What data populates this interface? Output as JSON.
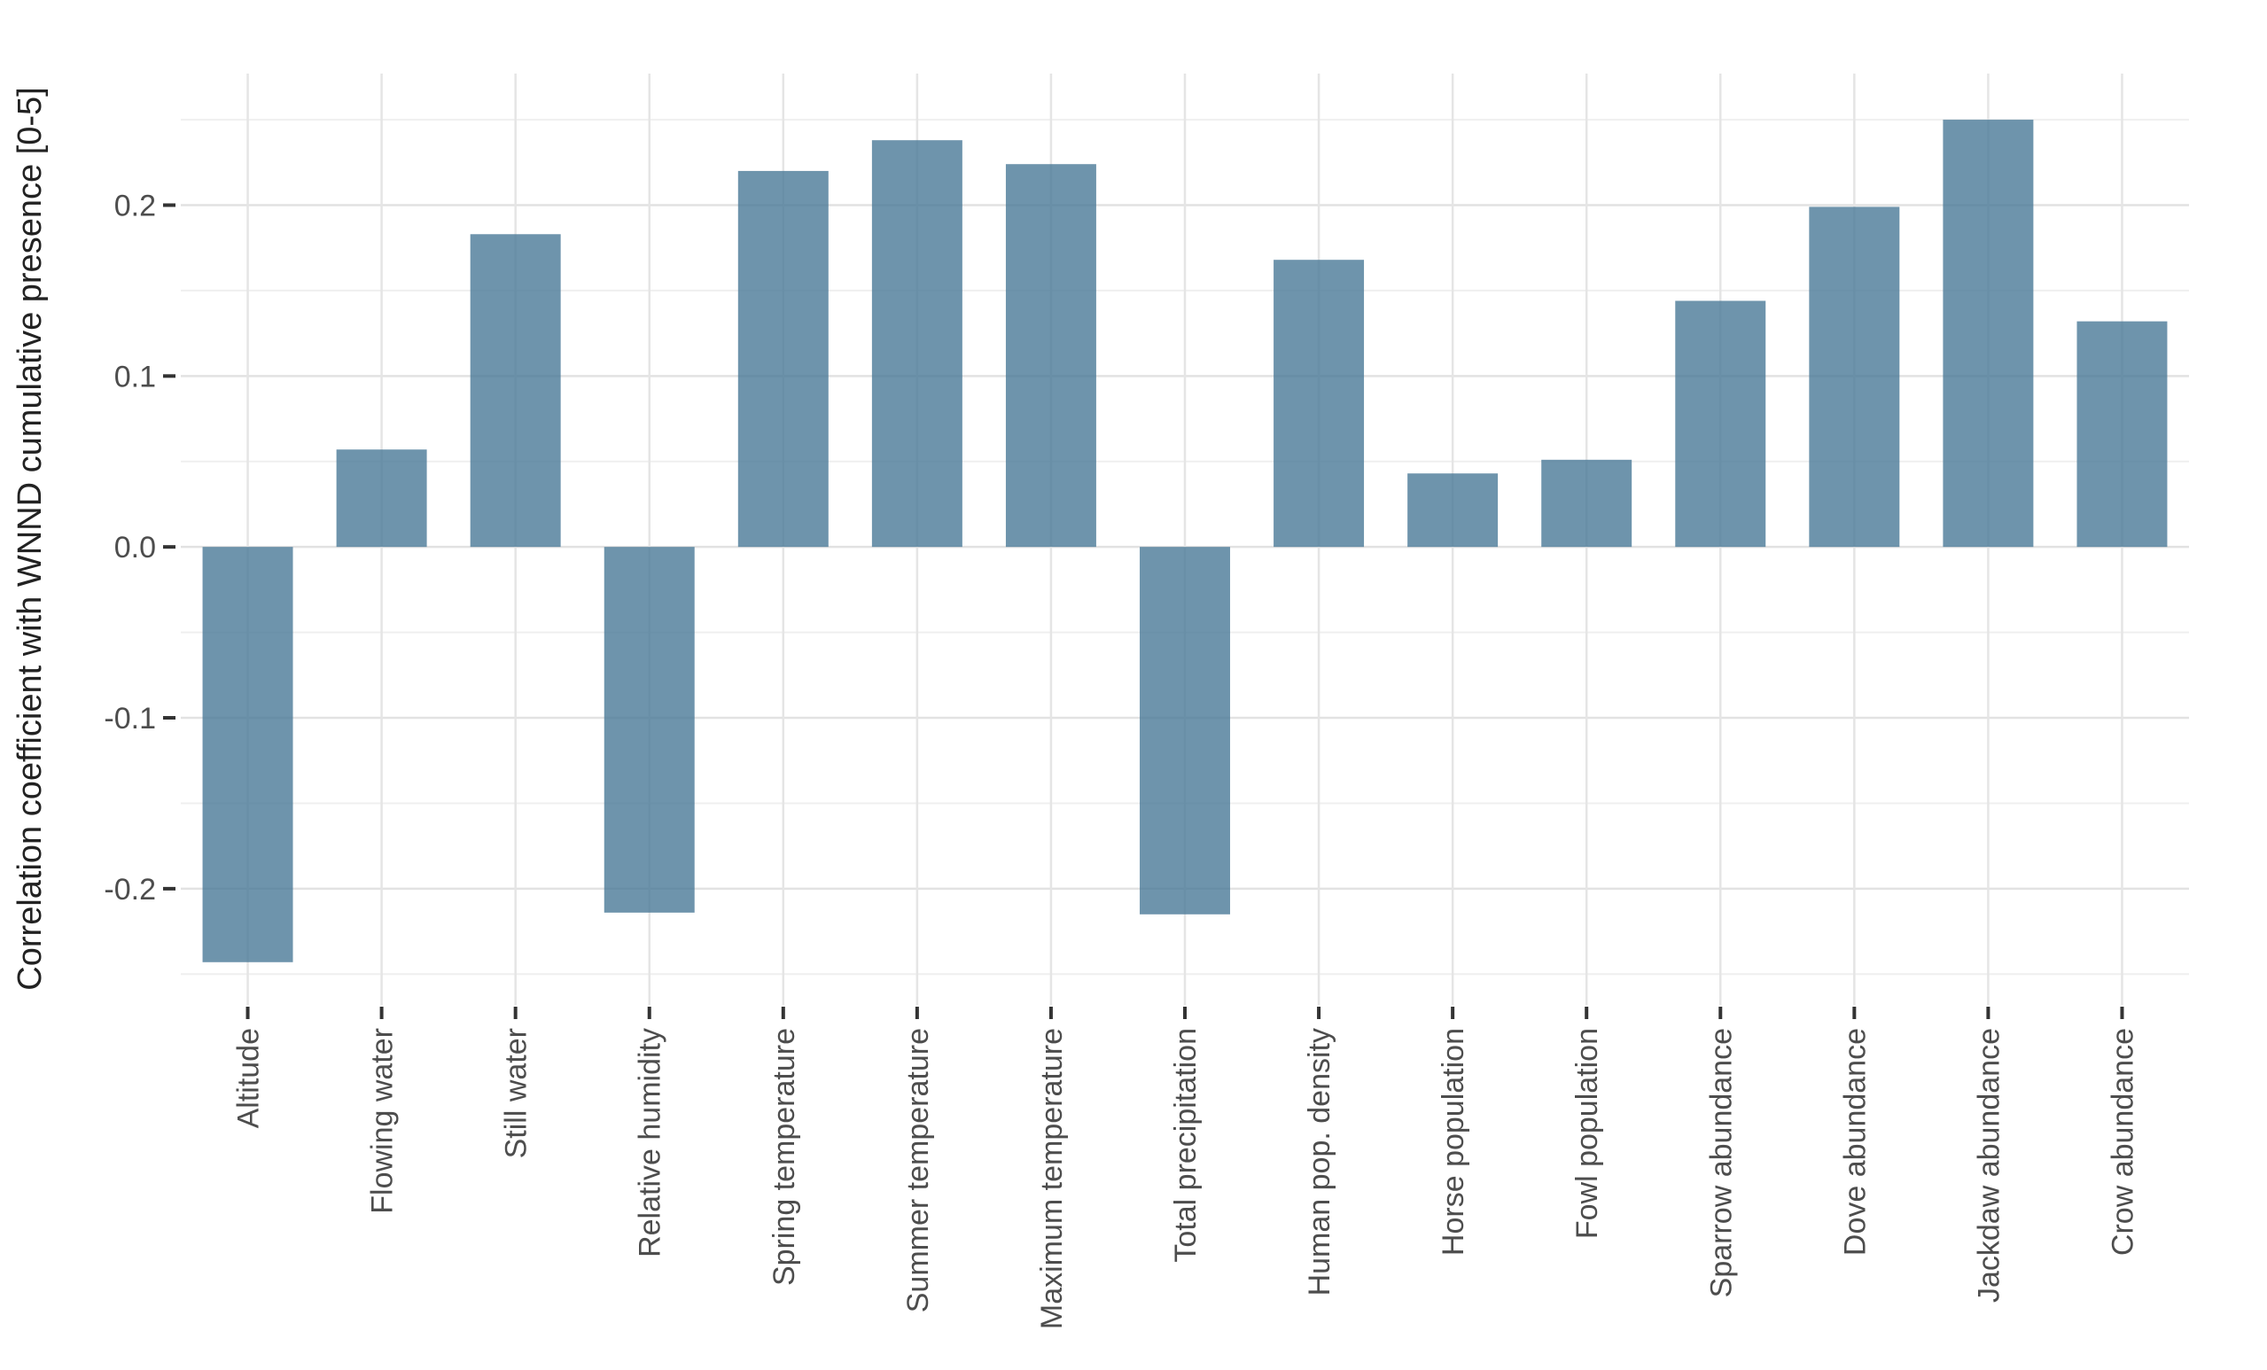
{
  "figure": {
    "background": "#ffffff"
  },
  "chart_data": {
    "type": "bar",
    "orientation": "vertical",
    "title": "",
    "xlabel": "",
    "ylabel": "Correlation coefficient with WNND cumulative presence [0-5]",
    "categories": [
      "Altitude",
      "Flowing water",
      "Still water",
      "Relative humidity",
      "Spring temperature",
      "Summer temperature",
      "Maximum temperature",
      "Total precipitation",
      "Human pop. density",
      "Horse population",
      "Fowl population",
      "Sparrow abundance",
      "Dove abundance",
      "Jackdaw abundance",
      "Crow abundance"
    ],
    "values": [
      -0.243,
      0.057,
      0.183,
      -0.214,
      0.22,
      0.238,
      0.224,
      -0.215,
      0.168,
      0.043,
      0.051,
      0.144,
      0.199,
      0.25,
      0.132
    ],
    "ylim": [
      -0.268,
      0.277
    ],
    "y_major_ticks": [
      0.2,
      0.1,
      0.0,
      -0.1,
      -0.2
    ],
    "y_tick_labels": [
      "0.2",
      "0.1",
      "0.0",
      "-0.1",
      "-0.2"
    ],
    "y_minor_ticks": [
      0.25,
      0.15,
      0.05,
      -0.05,
      -0.15,
      -0.25
    ],
    "grid": true,
    "legend": "none",
    "x_tick_rotation": -90,
    "bar_color": "#4A7997",
    "bar_opacity": 0.8
  },
  "colors": {
    "grid_major": "#e2e2e2",
    "grid_minor": "#efefef",
    "tick": "#333333",
    "tick_label": "#4d4d4d",
    "axis_title": "#222222",
    "bar_fill": "#4A7997"
  }
}
